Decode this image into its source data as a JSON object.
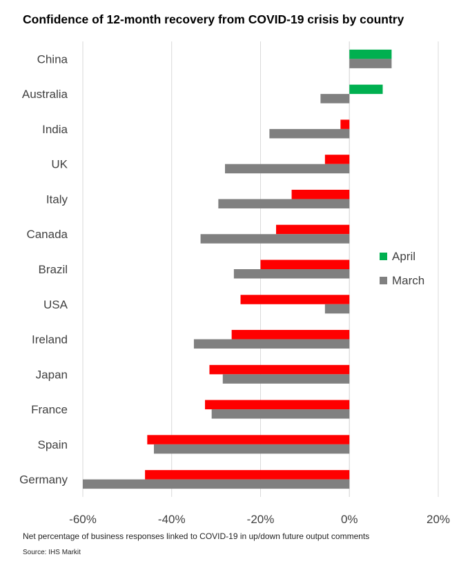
{
  "title": "Confidence of 12-month recovery from COVID-19 crisis by country",
  "footnote": "Net percentage of business responses linked to COVID-19 in up/down future output comments",
  "source": "Source: IHS Markit",
  "chart_data": {
    "type": "bar",
    "orientation": "horizontal",
    "categories": [
      "China",
      "Australia",
      "India",
      "UK",
      "Italy",
      "Canada",
      "Brazil",
      "USA",
      "Ireland",
      "Japan",
      "France",
      "Spain",
      "Germany"
    ],
    "series": [
      {
        "name": "April",
        "values": [
          9.5,
          7.5,
          -2,
          -5.5,
          -13,
          -16.5,
          -20,
          -24.5,
          -26.5,
          -31.5,
          -32.5,
          -45.5,
          -46
        ],
        "colors": [
          "#00b050",
          "#00b050",
          "#ff0000",
          "#ff0000",
          "#ff0000",
          "#ff0000",
          "#ff0000",
          "#ff0000",
          "#ff0000",
          "#ff0000",
          "#ff0000",
          "#ff0000",
          "#ff0000"
        ]
      },
      {
        "name": "March",
        "values": [
          9.5,
          -6.5,
          -18,
          -28,
          -29.5,
          -33.5,
          -26,
          -5.5,
          -35,
          -28.5,
          -31,
          -44,
          -60
        ],
        "colors": [
          "#808080",
          "#808080",
          "#808080",
          "#808080",
          "#808080",
          "#808080",
          "#808080",
          "#808080",
          "#808080",
          "#808080",
          "#808080",
          "#808080",
          "#808080"
        ]
      }
    ],
    "legend_colors": {
      "April": "#00b050",
      "March": "#808080"
    },
    "xlim": [
      -60,
      20
    ],
    "xticks": [
      -60,
      -40,
      -20,
      0,
      20
    ],
    "xtick_labels": [
      "-60%",
      "-40%",
      "-20%",
      "0%",
      "20%"
    ],
    "legend_position": "right",
    "grid": true
  }
}
